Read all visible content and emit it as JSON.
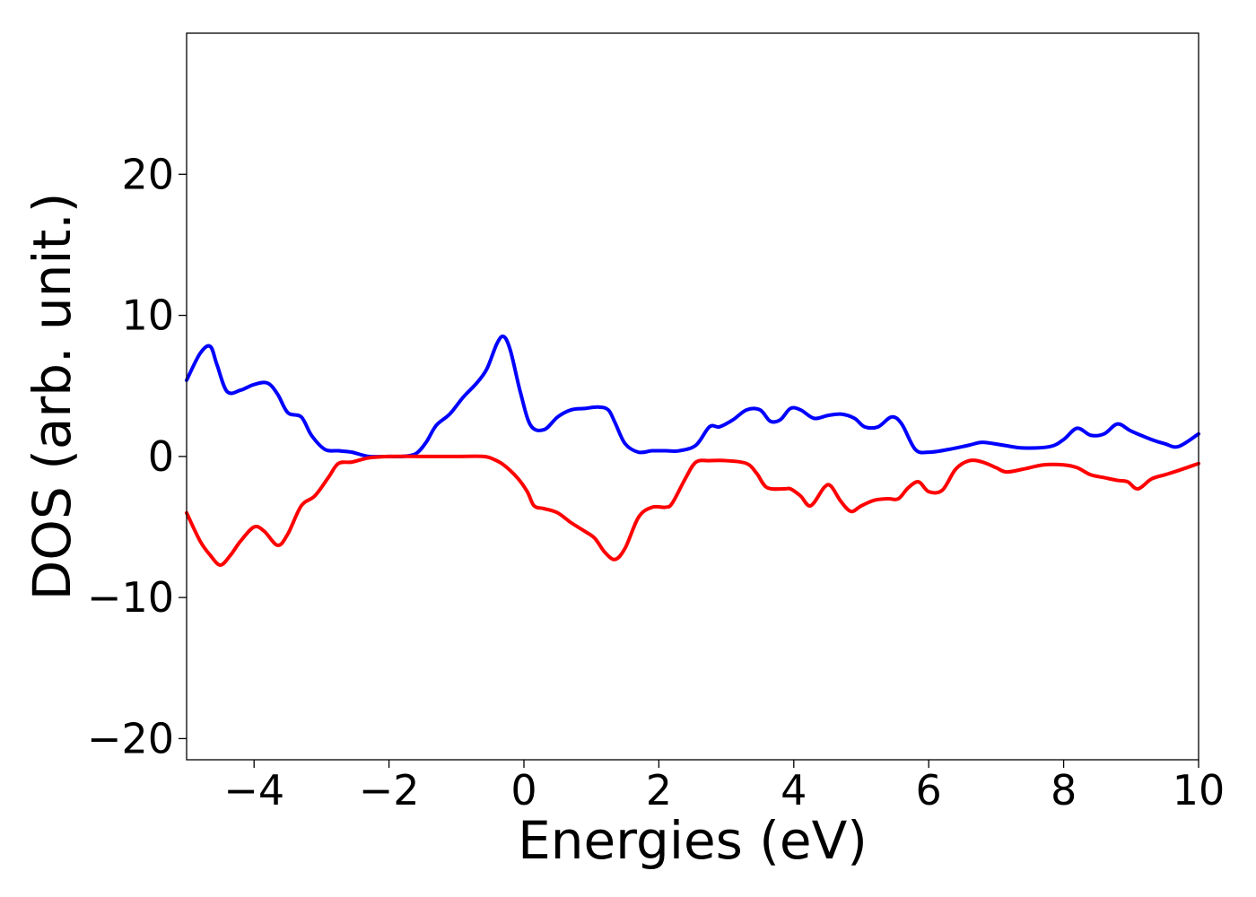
{
  "chart_data": {
    "type": "line",
    "title": "",
    "xlabel": "Energies (eV)",
    "ylabel": "DOS (arb. unit.)",
    "xlim": [
      -5,
      10
    ],
    "ylim": [
      -21.5,
      30
    ],
    "xticks": [
      -4,
      -2,
      0,
      2,
      4,
      6,
      8,
      10
    ],
    "xtick_labels": [
      "−4",
      "−2",
      "0",
      "2",
      "4",
      "6",
      "8",
      "10"
    ],
    "yticks": [
      -20,
      -10,
      0,
      10,
      20
    ],
    "ytick_labels": [
      "−20",
      "−10",
      "0",
      "10",
      "20"
    ],
    "grid": false,
    "legend": "none",
    "series": [
      {
        "color": "#0000ff",
        "x": [
          -5.0,
          -4.8,
          -4.65,
          -4.55,
          -4.4,
          -4.2,
          -4.0,
          -3.8,
          -3.65,
          -3.5,
          -3.3,
          -3.15,
          -2.95,
          -2.75,
          -2.55,
          -2.3,
          -2.0,
          -1.8,
          -1.6,
          -1.45,
          -1.3,
          -1.1,
          -0.9,
          -0.7,
          -0.55,
          -0.4,
          -0.3,
          -0.2,
          -0.05,
          0.1,
          0.3,
          0.5,
          0.7,
          0.9,
          1.1,
          1.25,
          1.35,
          1.5,
          1.7,
          1.9,
          2.1,
          2.3,
          2.55,
          2.75,
          2.9,
          3.1,
          3.3,
          3.5,
          3.65,
          3.8,
          3.95,
          4.1,
          4.3,
          4.5,
          4.7,
          4.9,
          5.05,
          5.25,
          5.45,
          5.6,
          5.8,
          6.0,
          6.3,
          6.6,
          6.8,
          7.1,
          7.4,
          7.8,
          8.0,
          8.2,
          8.4,
          8.6,
          8.8,
          9.0,
          9.3,
          9.5,
          9.7,
          10.0
        ],
        "y": [
          5.4,
          7.3,
          7.8,
          6.5,
          4.6,
          4.7,
          5.1,
          5.2,
          4.4,
          3.1,
          2.8,
          1.5,
          0.5,
          0.4,
          0.3,
          0.0,
          0.0,
          0.0,
          0.2,
          1.0,
          2.2,
          3.0,
          4.2,
          5.2,
          6.2,
          8.0,
          8.5,
          7.5,
          4.5,
          2.2,
          1.9,
          2.8,
          3.3,
          3.4,
          3.5,
          3.3,
          2.4,
          0.9,
          0.3,
          0.4,
          0.4,
          0.4,
          0.8,
          2.1,
          2.1,
          2.6,
          3.3,
          3.3,
          2.5,
          2.6,
          3.4,
          3.3,
          2.7,
          2.9,
          3.0,
          2.7,
          2.1,
          2.1,
          2.8,
          2.3,
          0.5,
          0.3,
          0.5,
          0.8,
          1.0,
          0.8,
          0.6,
          0.7,
          1.2,
          2.0,
          1.5,
          1.6,
          2.3,
          1.8,
          1.2,
          0.9,
          0.7,
          1.6
        ]
      },
      {
        "color": "#ff0000",
        "x": [
          -5.0,
          -4.8,
          -4.65,
          -4.5,
          -4.35,
          -4.2,
          -4.0,
          -3.85,
          -3.65,
          -3.5,
          -3.3,
          -3.1,
          -2.9,
          -2.75,
          -2.55,
          -2.3,
          -2.0,
          -1.5,
          -1.0,
          -0.6,
          -0.45,
          -0.3,
          -0.1,
          0.05,
          0.15,
          0.3,
          0.5,
          0.7,
          0.9,
          1.05,
          1.2,
          1.35,
          1.5,
          1.7,
          1.9,
          2.1,
          2.2,
          2.4,
          2.55,
          2.75,
          3.0,
          3.3,
          3.45,
          3.6,
          3.85,
          3.95,
          4.1,
          4.25,
          4.45,
          4.55,
          4.7,
          4.85,
          5.0,
          5.2,
          5.4,
          5.55,
          5.7,
          5.85,
          6.0,
          6.2,
          6.4,
          6.6,
          6.8,
          7.0,
          7.15,
          7.4,
          7.7,
          8.0,
          8.2,
          8.4,
          8.6,
          8.8,
          8.95,
          9.1,
          9.3,
          9.5,
          9.7,
          10.0
        ],
        "y": [
          -4.0,
          -6.0,
          -7.0,
          -7.7,
          -7.0,
          -6.0,
          -5.0,
          -5.3,
          -6.3,
          -5.5,
          -3.5,
          -2.8,
          -1.5,
          -0.5,
          -0.4,
          -0.1,
          0.0,
          0.0,
          0.0,
          0.0,
          -0.2,
          -0.6,
          -1.5,
          -2.5,
          -3.5,
          -3.7,
          -4.0,
          -4.7,
          -5.3,
          -5.8,
          -6.8,
          -7.3,
          -6.5,
          -4.3,
          -3.6,
          -3.6,
          -3.3,
          -1.5,
          -0.4,
          -0.3,
          -0.3,
          -0.5,
          -1.2,
          -2.2,
          -2.3,
          -2.3,
          -2.8,
          -3.5,
          -2.2,
          -2.1,
          -3.2,
          -3.9,
          -3.5,
          -3.1,
          -3.0,
          -3.0,
          -2.2,
          -1.8,
          -2.5,
          -2.4,
          -0.9,
          -0.3,
          -0.4,
          -0.8,
          -1.1,
          -0.9,
          -0.6,
          -0.6,
          -0.8,
          -1.3,
          -1.5,
          -1.7,
          -1.8,
          -2.3,
          -1.6,
          -1.3,
          -1.0,
          -0.5
        ]
      }
    ]
  }
}
